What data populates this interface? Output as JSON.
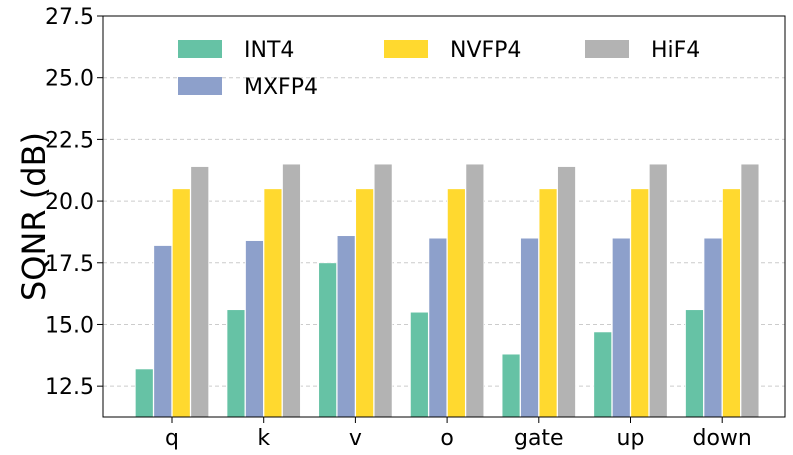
{
  "chart_data": {
    "type": "bar",
    "title": "",
    "xlabel": "",
    "ylabel": "SQNR (dB)",
    "ylim": [
      11.25,
      27.5
    ],
    "yticks": [
      12.5,
      15.0,
      17.5,
      20.0,
      22.5,
      25.0,
      27.5
    ],
    "ytick_labels": [
      "12.5",
      "15.0",
      "17.5",
      "20.0",
      "22.5",
      "25.0",
      "27.5"
    ],
    "grid": "horizontal dashed",
    "legend_position": "top",
    "categories": [
      "q",
      "k",
      "v",
      "o",
      "gate",
      "up",
      "down"
    ],
    "series": [
      {
        "name": "INT4",
        "color": "#66c2a5",
        "values": [
          13.2,
          15.6,
          17.5,
          15.5,
          13.8,
          14.7,
          15.6
        ]
      },
      {
        "name": "MXFP4",
        "color": "#8da0cb",
        "values": [
          18.2,
          18.4,
          18.6,
          18.5,
          18.5,
          18.5,
          18.5
        ]
      },
      {
        "name": "NVFP4",
        "color": "#ffd92f",
        "values": [
          20.5,
          20.5,
          20.5,
          20.5,
          20.5,
          20.5,
          20.5
        ]
      },
      {
        "name": "HiF4",
        "color": "#b3b3b3",
        "values": [
          21.4,
          21.5,
          21.5,
          21.5,
          21.4,
          21.5,
          21.5
        ]
      }
    ]
  }
}
